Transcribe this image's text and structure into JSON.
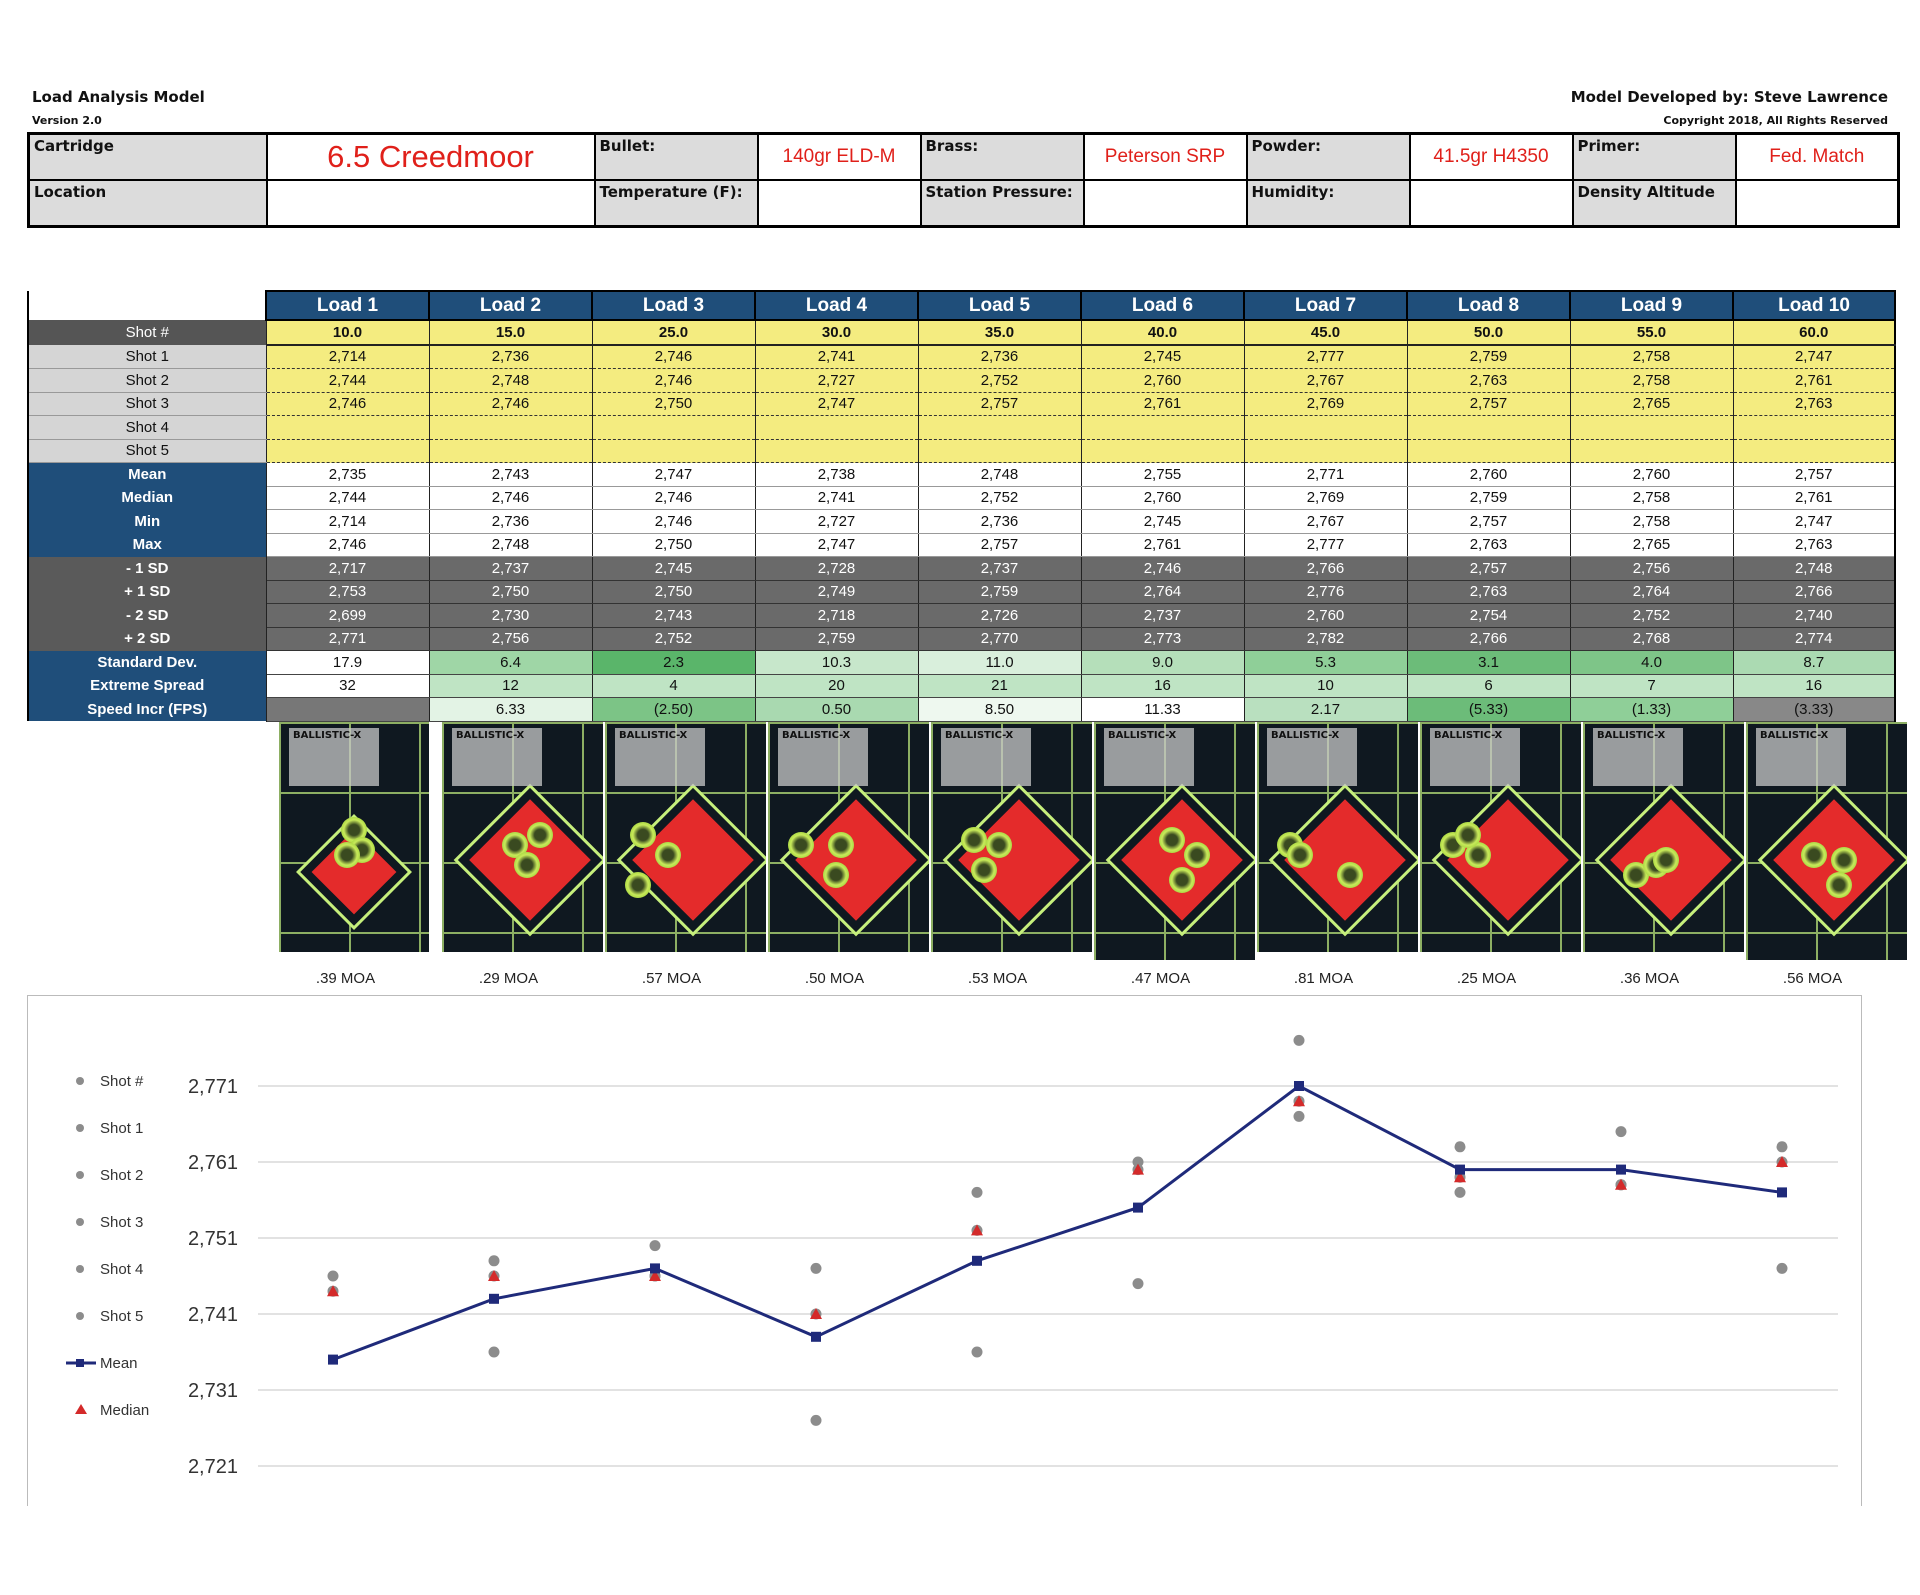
{
  "header": {
    "title": "Load Analysis Model",
    "version": "Version 2.0",
    "developer": "Model Developed by: Steve Lawrence",
    "copyright": "Copyright 2018, All Rights Reserved"
  },
  "info": {
    "cartridge_label": "Cartridge",
    "cartridge": "6.5 Creedmoor",
    "bullet_label": "Bullet:",
    "bullet": "140gr ELD-M",
    "brass_label": "Brass:",
    "brass": "Peterson SRP",
    "powder_label": "Powder:",
    "powder": "41.5gr H4350",
    "primer_label": "Primer:",
    "primer": "Fed. Match",
    "location_label": "Location",
    "location": "",
    "temperature_label": "Temperature (F):",
    "temperature": "",
    "pressure_label": "Station Pressure:",
    "pressure": "",
    "humidity_label": "Humidity:",
    "humidity": "",
    "density_label": "Density Altitude",
    "density": ""
  },
  "loads": [
    "Load 1",
    "Load 2",
    "Load 3",
    "Load 4",
    "Load 5",
    "Load 6",
    "Load 7",
    "Load 8",
    "Load 9",
    "Load 10"
  ],
  "rows": [
    {
      "label": "Shot #",
      "type": "shotnum",
      "values": [
        "10.0",
        "15.0",
        "25.0",
        "30.0",
        "35.0",
        "40.0",
        "45.0",
        "50.0",
        "55.0",
        "60.0"
      ]
    },
    {
      "label": "Shot 1",
      "type": "shot",
      "values": [
        "2,714",
        "2,736",
        "2,746",
        "2,741",
        "2,736",
        "2,745",
        "2,777",
        "2,759",
        "2,758",
        "2,747"
      ]
    },
    {
      "label": "Shot 2",
      "type": "shot",
      "values": [
        "2,744",
        "2,748",
        "2,746",
        "2,727",
        "2,752",
        "2,760",
        "2,767",
        "2,763",
        "2,758",
        "2,761"
      ]
    },
    {
      "label": "Shot 3",
      "type": "shot",
      "values": [
        "2,746",
        "2,746",
        "2,750",
        "2,747",
        "2,757",
        "2,761",
        "2,769",
        "2,757",
        "2,765",
        "2,763"
      ]
    },
    {
      "label": "Shot 4",
      "type": "shot",
      "values": [
        "",
        "",
        "",
        "",
        "",
        "",
        "",
        "",
        "",
        ""
      ]
    },
    {
      "label": "Shot 5",
      "type": "shot",
      "values": [
        "",
        "",
        "",
        "",
        "",
        "",
        "",
        "",
        "",
        ""
      ]
    },
    {
      "label": "Mean",
      "type": "stat",
      "values": [
        "2,735",
        "2,743",
        "2,747",
        "2,738",
        "2,748",
        "2,755",
        "2,771",
        "2,760",
        "2,760",
        "2,757"
      ]
    },
    {
      "label": "Median",
      "type": "stat",
      "values": [
        "2,744",
        "2,746",
        "2,746",
        "2,741",
        "2,752",
        "2,760",
        "2,769",
        "2,759",
        "2,758",
        "2,761"
      ]
    },
    {
      "label": "Min",
      "type": "stat",
      "values": [
        "2,714",
        "2,736",
        "2,746",
        "2,727",
        "2,736",
        "2,745",
        "2,767",
        "2,757",
        "2,758",
        "2,747"
      ]
    },
    {
      "label": "Max",
      "type": "stat",
      "values": [
        "2,746",
        "2,748",
        "2,750",
        "2,747",
        "2,757",
        "2,761",
        "2,777",
        "2,763",
        "2,765",
        "2,763"
      ]
    },
    {
      "label": "- 1 SD",
      "type": "sd",
      "values": [
        "2,717",
        "2,737",
        "2,745",
        "2,728",
        "2,737",
        "2,746",
        "2,766",
        "2,757",
        "2,756",
        "2,748"
      ]
    },
    {
      "label": "+ 1 SD",
      "type": "sd",
      "values": [
        "2,753",
        "2,750",
        "2,750",
        "2,749",
        "2,759",
        "2,764",
        "2,776",
        "2,763",
        "2,764",
        "2,766"
      ]
    },
    {
      "label": "- 2 SD",
      "type": "sd",
      "values": [
        "2,699",
        "2,730",
        "2,743",
        "2,718",
        "2,726",
        "2,737",
        "2,760",
        "2,754",
        "2,752",
        "2,740"
      ]
    },
    {
      "label": "+ 2 SD",
      "type": "sd",
      "values": [
        "2,771",
        "2,756",
        "2,752",
        "2,759",
        "2,770",
        "2,773",
        "2,782",
        "2,766",
        "2,768",
        "2,774"
      ]
    },
    {
      "label": "Standard Dev.",
      "type": "std",
      "values": [
        "17.9",
        "6.4",
        "2.3",
        "10.3",
        "11.0",
        "9.0",
        "5.3",
        "3.1",
        "4.0",
        "8.7"
      ],
      "colors": [
        "#ffffff",
        "#9fd6a6",
        "#5ab56a",
        "#c7e7cb",
        "#d9efdc",
        "#b5dfba",
        "#8fcf98",
        "#6cbc79",
        "#7ec588",
        "#abdab2"
      ]
    },
    {
      "label": "Extreme Spread",
      "type": "std",
      "values": [
        "32",
        "12",
        "4",
        "20",
        "21",
        "16",
        "10",
        "6",
        "7",
        "16"
      ],
      "colors": [
        "#ffffff",
        "#bfe4c4",
        "#bfe4c4",
        "#bfe4c4",
        "#bfe4c4",
        "#bfe4c4",
        "#bfe4c4",
        "#bfe4c4",
        "#bfe4c4",
        "#bfe4c4"
      ]
    },
    {
      "label": "Speed Incr (FPS)",
      "type": "std",
      "values": [
        "",
        "6.33",
        "(2.50)",
        "0.50",
        "8.50",
        "11.33",
        "2.17",
        "(5.33)",
        "(1.33)",
        "(3.33)"
      ],
      "colors": [
        "#777777",
        "#e3f3e5",
        "#7cc486",
        "#a9d9b0",
        "#eef8ef",
        "#ffffff",
        "#b9e0bf",
        "#6cbc79",
        "#8fcf98",
        "#888888"
      ]
    }
  ],
  "targets": {
    "badge_text": "BALLISTIC-X",
    "moa": [
      ".39 MOA",
      ".29 MOA",
      ".57 MOA",
      ".50 MOA",
      ".53 MOA",
      ".47 MOA",
      ".81 MOA",
      ".25 MOA",
      ".36 MOA",
      ".56 MOA"
    ]
  },
  "chart_data": {
    "type": "line",
    "categories": [
      "Load 1",
      "Load 2",
      "Load 3",
      "Load 4",
      "Load 5",
      "Load 6",
      "Load 7",
      "Load 8",
      "Load 9",
      "Load 10"
    ],
    "ylim": [
      2721,
      2781
    ],
    "yticks": [
      "2,771",
      "2,761",
      "2,751",
      "2,741",
      "2,731",
      "2,721"
    ],
    "ytick_values": [
      2771,
      2761,
      2751,
      2741,
      2731,
      2721
    ],
    "series": [
      {
        "name": "Shot #",
        "values": [
          10,
          15,
          25,
          30,
          35,
          40,
          45,
          50,
          55,
          60
        ],
        "marker": "dot",
        "color": "#8c8c8c"
      },
      {
        "name": "Shot 1",
        "values": [
          2714,
          2736,
          2746,
          2741,
          2736,
          2745,
          2777,
          2759,
          2758,
          2747
        ],
        "marker": "dot",
        "color": "#8c8c8c"
      },
      {
        "name": "Shot 2",
        "values": [
          2744,
          2748,
          2746,
          2727,
          2752,
          2760,
          2767,
          2763,
          2758,
          2761
        ],
        "marker": "dot",
        "color": "#8c8c8c"
      },
      {
        "name": "Shot 3",
        "values": [
          2746,
          2746,
          2750,
          2747,
          2757,
          2761,
          2769,
          2757,
          2765,
          2763
        ],
        "marker": "dot",
        "color": "#8c8c8c"
      },
      {
        "name": "Shot 4",
        "values": [
          null,
          null,
          null,
          null,
          null,
          null,
          null,
          null,
          null,
          null
        ],
        "marker": "dot",
        "color": "#8c8c8c"
      },
      {
        "name": "Shot 5",
        "values": [
          null,
          null,
          null,
          null,
          null,
          null,
          null,
          null,
          null,
          null
        ],
        "marker": "dot",
        "color": "#8c8c8c"
      },
      {
        "name": "Mean",
        "values": [
          2735,
          2743,
          2747,
          2738,
          2748,
          2755,
          2771,
          2760,
          2760,
          2757
        ],
        "marker": "square-line",
        "color": "#1f2a7a"
      },
      {
        "name": "Median",
        "values": [
          2744,
          2746,
          2746,
          2741,
          2752,
          2760,
          2769,
          2759,
          2758,
          2761
        ],
        "marker": "triangle",
        "color": "#d42a2a"
      }
    ],
    "legend_position": "left",
    "grid": true
  }
}
